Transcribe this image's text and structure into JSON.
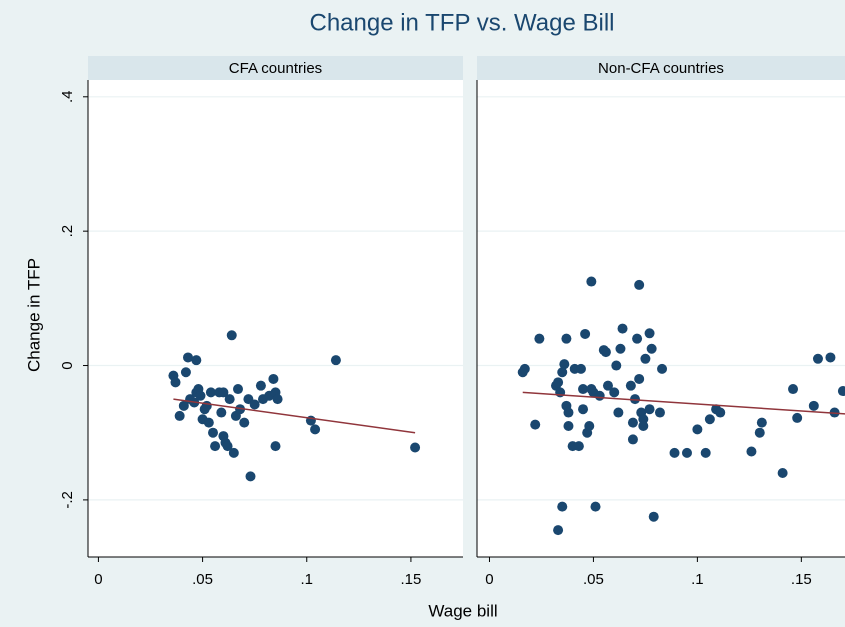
{
  "chart_data": [
    {
      "type": "scatter",
      "title": "Change in TFP vs. Wage Bill",
      "subtitle": "CFA countries",
      "xlabel": "Wage bill",
      "ylabel": "Change in TFP",
      "xlim": [
        -0.005,
        0.175
      ],
      "ylim": [
        -0.285,
        0.425
      ],
      "xticks": [
        0,
        {
          "value": 0.05,
          "label": ".05"
        },
        {
          "value": 0.1,
          "label": ".1"
        },
        {
          "value": 0.15,
          "label": ".15"
        }
      ],
      "yticks": [
        {
          "value": -0.2,
          "label": "-.2"
        },
        0,
        {
          "value": 0.2,
          "label": ".2"
        },
        {
          "value": 0.4,
          "label": ".4"
        }
      ],
      "grid": true,
      "color": "#1a476f",
      "x": [
        0.036,
        0.037,
        0.039,
        0.041,
        0.042,
        0.043,
        0.044,
        0.046,
        0.047,
        0.047,
        0.048,
        0.049,
        0.05,
        0.051,
        0.052,
        0.053,
        0.054,
        0.055,
        0.056,
        0.058,
        0.059,
        0.06,
        0.06,
        0.061,
        0.062,
        0.063,
        0.064,
        0.065,
        0.066,
        0.067,
        0.068,
        0.07,
        0.072,
        0.073,
        0.075,
        0.078,
        0.079,
        0.082,
        0.084,
        0.085,
        0.085,
        0.086,
        0.102,
        0.104,
        0.114,
        0.152
      ],
      "values": [
        -0.015,
        -0.025,
        -0.075,
        -0.06,
        -0.01,
        0.012,
        -0.05,
        -0.055,
        0.008,
        -0.04,
        -0.035,
        -0.045,
        -0.08,
        -0.065,
        -0.06,
        -0.085,
        -0.04,
        -0.1,
        -0.12,
        -0.04,
        -0.07,
        -0.04,
        -0.105,
        -0.115,
        -0.12,
        -0.05,
        0.045,
        -0.13,
        -0.075,
        -0.035,
        -0.065,
        -0.085,
        -0.05,
        -0.165,
        -0.058,
        -0.03,
        -0.05,
        -0.045,
        -0.02,
        -0.04,
        -0.12,
        -0.05,
        -0.082,
        -0.095,
        0.008,
        -0.122
      ],
      "fit": {
        "x": [
          0.036,
          0.152
        ],
        "values": [
          -0.05,
          -0.1
        ],
        "color": "#90353b"
      }
    },
    {
      "type": "scatter",
      "subtitle": "Non-CFA countries",
      "xlim": [
        -0.006,
        0.171
      ],
      "ylim": [
        -0.285,
        0.425
      ],
      "xticks": [
        0,
        {
          "value": 0.05,
          "label": ".05"
        },
        {
          "value": 0.1,
          "label": ".1"
        },
        {
          "value": 0.15,
          "label": ".15"
        }
      ],
      "grid": true,
      "color": "#1a476f",
      "x": [
        0.016,
        0.017,
        0.022,
        0.024,
        0.032,
        0.033,
        0.033,
        0.034,
        0.035,
        0.035,
        0.036,
        0.037,
        0.037,
        0.038,
        0.038,
        0.04,
        0.041,
        0.043,
        0.044,
        0.045,
        0.045,
        0.046,
        0.047,
        0.048,
        0.049,
        0.049,
        0.05,
        0.051,
        0.053,
        0.055,
        0.056,
        0.057,
        0.06,
        0.061,
        0.062,
        0.063,
        0.064,
        0.068,
        0.069,
        0.069,
        0.07,
        0.071,
        0.072,
        0.072,
        0.073,
        0.074,
        0.074,
        0.075,
        0.077,
        0.077,
        0.078,
        0.079,
        0.082,
        0.083,
        0.089,
        0.095,
        0.1,
        0.104,
        0.106,
        0.109,
        0.111,
        0.126,
        0.13,
        0.131,
        0.141,
        0.146,
        0.148,
        0.156,
        0.158,
        0.164,
        0.166,
        0.17
      ],
      "values": [
        -0.01,
        -0.005,
        -0.088,
        0.04,
        -0.03,
        -0.025,
        -0.245,
        -0.04,
        -0.01,
        -0.21,
        0.002,
        -0.06,
        0.04,
        -0.09,
        -0.07,
        -0.12,
        -0.005,
        -0.12,
        -0.005,
        -0.035,
        -0.065,
        0.047,
        -0.1,
        -0.09,
        0.125,
        -0.035,
        -0.04,
        -0.21,
        -0.045,
        0.023,
        0.02,
        -0.03,
        -0.04,
        0.0,
        -0.07,
        0.025,
        0.055,
        -0.03,
        -0.085,
        -0.11,
        -0.05,
        0.04,
        -0.02,
        0.12,
        -0.07,
        -0.08,
        -0.09,
        0.01,
        -0.065,
        0.048,
        0.025,
        -0.225,
        -0.07,
        -0.005,
        -0.13,
        -0.13,
        -0.095,
        -0.13,
        -0.08,
        -0.065,
        -0.07,
        -0.128,
        -0.1,
        -0.085,
        -0.16,
        -0.035,
        -0.078,
        -0.06,
        0.01,
        0.012,
        -0.07,
        -0.038
      ],
      "fit": {
        "x": [
          0.016,
          0.171
        ],
        "values": [
          -0.04,
          -0.072
        ],
        "color": "#90353b"
      }
    }
  ]
}
